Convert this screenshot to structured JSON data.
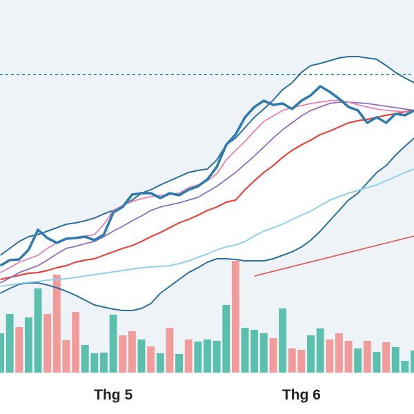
{
  "chart_data": {
    "type": "line",
    "categories": [
      null,
      null,
      null,
      null,
      null,
      null,
      null,
      null,
      null,
      null,
      null,
      null,
      "Thg 5",
      null,
      null,
      null,
      null,
      null,
      null,
      null,
      null,
      null,
      null,
      null,
      null,
      null,
      null,
      null,
      null,
      null,
      null,
      null,
      "Thg 6",
      null,
      null,
      null,
      null,
      null,
      null,
      null,
      null,
      null,
      null,
      null,
      null
    ],
    "ylim": [
      0,
      540
    ],
    "y2lim": [
      0,
      540
    ],
    "series": [
      {
        "type": "band",
        "color": "#2a6fa0",
        "upper": [
          170,
          180,
          190,
          197,
          200,
          205,
          210,
          215,
          217,
          220,
          224,
          230,
          235,
          242,
          250,
          260,
          265,
          272,
          278,
          284,
          290,
          293,
          295,
          308,
          330,
          340,
          355,
          370,
          382,
          395,
          410,
          420,
          435,
          445,
          448,
          452,
          456,
          458,
          458,
          456,
          454,
          445,
          435,
          427,
          420
        ],
        "lower": [
          115,
          122,
          128,
          130,
          130,
          127,
          123,
          118,
          112,
          105,
          98,
          95,
          92,
          90,
          90,
          93,
          100,
          115,
          125,
          135,
          145,
          152,
          160,
          165,
          165,
          164,
          162,
          162,
          162,
          165,
          170,
          175,
          182,
          192,
          205,
          220,
          235,
          250,
          260,
          275,
          290,
          300,
          315,
          328,
          340
        ]
      },
      {
        "type": "line",
        "color": "#90d0ee",
        "width": 2,
        "values": [
          125,
          127,
          129,
          131,
          132,
          134,
          135,
          136,
          138,
          140,
          142,
          144,
          146,
          148,
          150,
          152,
          153,
          154,
          155,
          158,
          162,
          167,
          172,
          178,
          182,
          185,
          190,
          198,
          205,
          210,
          215,
          222,
          228,
          234,
          242,
          250,
          255,
          260,
          264,
          268,
          272,
          278,
          284,
          290,
          295
        ]
      },
      {
        "type": "line",
        "color": "#e8453c",
        "width": 2.2,
        "values": [
          135,
          138,
          141,
          144,
          145,
          148,
          152,
          155,
          160,
          163,
          165,
          170,
          175,
          180,
          184,
          190,
          197,
          203,
          210,
          217,
          222,
          228,
          235,
          240,
          247,
          250,
          265,
          278,
          290,
          300,
          312,
          322,
          330,
          337,
          345,
          350,
          356,
          362,
          365,
          367,
          370,
          373,
          375,
          378,
          380
        ]
      },
      {
        "type": "line",
        "color": "#8e6bbf",
        "width": 1.8,
        "values": [
          130,
          137,
          145,
          150,
          155,
          163,
          172,
          180,
          183,
          187,
          190,
          197,
          205,
          212,
          220,
          227,
          235,
          240,
          243,
          246,
          250,
          254,
          262,
          270,
          280,
          290,
          302,
          314,
          327,
          340,
          352,
          362,
          372,
          380,
          385,
          390,
          392,
          392,
          391,
          390,
          388,
          386,
          384,
          382,
          380
        ]
      },
      {
        "type": "line",
        "color": "#e87fb0",
        "width": 1.8,
        "values": [
          145,
          152,
          160,
          165,
          170,
          180,
          188,
          194,
          196,
          198,
          200,
          215,
          235,
          242,
          248,
          252,
          255,
          257,
          258,
          260,
          268,
          272,
          278,
          288,
          308,
          322,
          335,
          350,
          364,
          372,
          380,
          384,
          387,
          390,
          392,
          394,
          395,
          392,
          388,
          385,
          382,
          380,
          379,
          378,
          378
        ]
      },
      {
        "type": "line",
        "color": "#2e7bb0",
        "width": 3.6,
        "values": [
          155,
          163,
          164,
          178,
          207,
          195,
          188,
          194,
          195,
          197,
          192,
          200,
          232,
          240,
          258,
          260,
          260,
          253,
          260,
          257,
          265,
          270,
          280,
          298,
          330,
          345,
          370,
          385,
          394,
          388,
          390,
          382,
          394,
          402,
          415,
          407,
          397,
          385,
          380,
          362,
          370,
          362,
          375,
          373,
          380
        ]
      },
      {
        "type": "bar",
        "axis": "y2",
        "values": [
          57,
          85,
          66,
          80,
          122,
          85,
          142,
          47,
          88,
          40,
          28,
          29,
          84,
          54,
          60,
          48,
          38,
          28,
          65,
          27,
          48,
          45,
          48,
          46,
          98,
          162,
          65,
          62,
          57,
          50,
          93,
          35,
          33,
          54,
          64,
          48,
          57,
          46,
          35,
          46,
          30,
          44,
          37,
          17,
          32
        ],
        "colors": [
          "#5bbfad",
          "#5bbfad",
          "#f29b9b",
          "#5bbfad",
          "#5bbfad",
          "#f29b9b",
          "#f29b9b",
          "#f29b9b",
          "#f29b9b",
          "#5bbfad",
          "#5bbfad",
          "#5bbfad",
          "#5bbfad",
          "#f29b9b",
          "#f29b9b",
          "#5bbfad",
          "#f29b9b",
          "#5bbfad",
          "#f29b9b",
          "#5bbfad",
          "#f29b9b",
          "#5bbfad",
          "#5bbfad",
          "#5bbfad",
          "#5bbfad",
          "#f29b9b",
          "#5bbfad",
          "#5bbfad",
          "#5bbfad",
          "#f29b9b",
          "#5bbfad",
          "#f29b9b",
          "#f29b9b",
          "#5bbfad",
          "#5bbfad",
          "#f29b9b",
          "#f29b9b",
          "#f29b9b",
          "#5bbfad",
          "#f29b9b",
          "#5bbfad",
          "#f29b9b",
          "#5bbfad",
          "#5bbfad",
          "#5bbfad"
        ]
      }
    ],
    "reference_line": {
      "value": 432,
      "color": "#2f7fb5"
    },
    "trendline": {
      "x": [
        27,
        44
      ],
      "values": [
        140,
        198
      ],
      "color": "#e0605a"
    }
  }
}
